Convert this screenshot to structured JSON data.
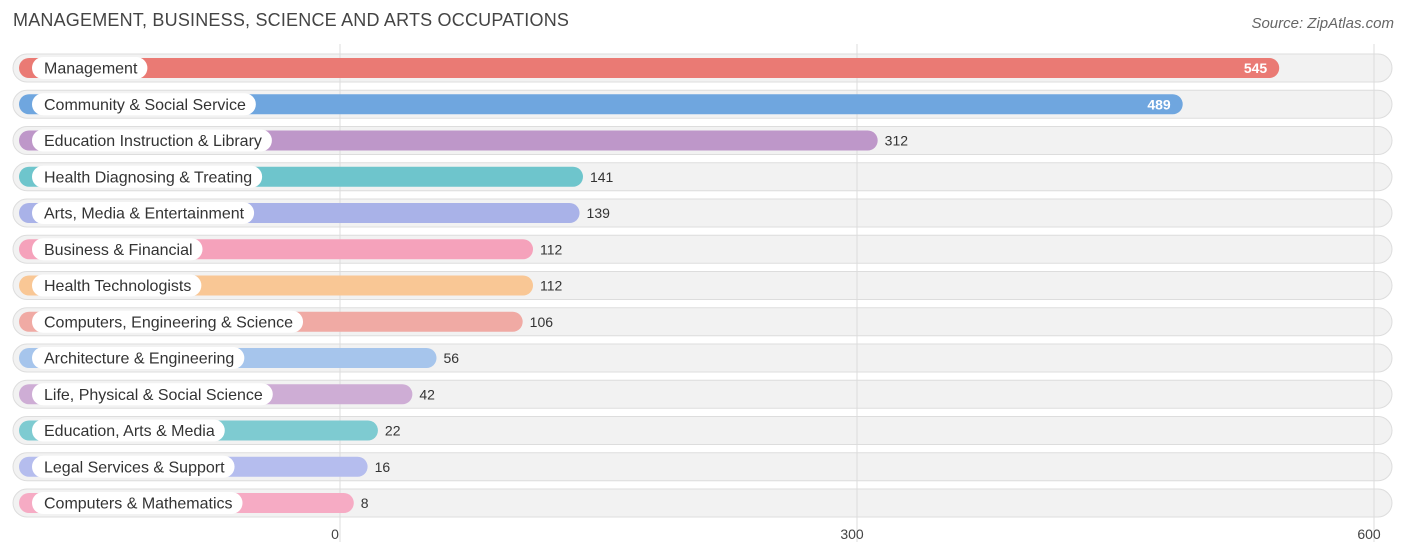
{
  "header": {
    "title": "MANAGEMENT, BUSINESS, SCIENCE AND ARTS OCCUPATIONS",
    "source": "Source: ZipAtlas.com"
  },
  "chart_data": {
    "type": "bar",
    "orientation": "horizontal",
    "title": "MANAGEMENT, BUSINESS, SCIENCE AND ARTS OCCUPATIONS",
    "xlabel": "",
    "ylabel": "",
    "xlim": [
      0,
      600
    ],
    "ticks": [
      0,
      300,
      600
    ],
    "tick_labels": [
      "0",
      "300",
      "600"
    ],
    "grid": true,
    "legend": "none",
    "categories": [
      "Management",
      "Community & Social Service",
      "Education Instruction & Library",
      "Health Diagnosing & Treating",
      "Arts, Media & Entertainment",
      "Business & Financial",
      "Health Technologists",
      "Computers, Engineering & Science",
      "Architecture & Engineering",
      "Life, Physical & Social Science",
      "Education, Arts & Media",
      "Legal Services & Support",
      "Computers & Mathematics"
    ],
    "values": [
      545,
      489,
      312,
      141,
      139,
      112,
      112,
      106,
      56,
      42,
      22,
      16,
      8
    ],
    "colors": [
      "#ea7a74",
      "#6fa6df",
      "#be97c9",
      "#6ec5cc",
      "#a9b2e8",
      "#f5a2bb",
      "#f9c795",
      "#f0aaa4",
      "#a6c5ec",
      "#ceadd5",
      "#7ecbd1",
      "#b5bdee",
      "#f6abc4"
    ]
  }
}
